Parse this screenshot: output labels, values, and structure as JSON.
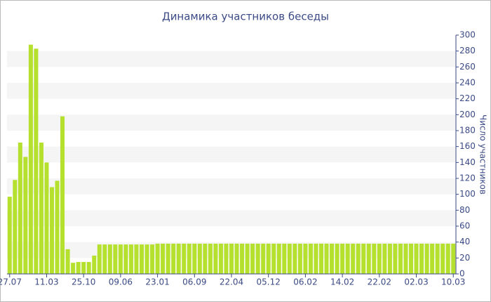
{
  "chart_data": {
    "type": "bar",
    "title": "Динамика участников беседы",
    "y_label": "Число участников",
    "color": "#b5e02e",
    "categories": [
      "27.07",
      null,
      null,
      null,
      null,
      null,
      null,
      "11.03",
      null,
      null,
      null,
      null,
      null,
      null,
      "25.10",
      null,
      null,
      null,
      null,
      null,
      null,
      "09.06",
      null,
      null,
      null,
      null,
      null,
      null,
      "23.01",
      null,
      null,
      null,
      null,
      null,
      null,
      "06.09",
      null,
      null,
      null,
      null,
      null,
      null,
      "22.04",
      null,
      null,
      null,
      null,
      null,
      null,
      "05.12",
      null,
      null,
      null,
      null,
      null,
      null,
      "06.02",
      null,
      null,
      null,
      null,
      null,
      null,
      "14.02",
      null,
      null,
      null,
      null,
      null,
      null,
      "22.02",
      null,
      null,
      null,
      null,
      null,
      null,
      "02.03",
      null,
      null,
      null,
      null,
      null,
      null,
      "10.03"
    ],
    "values": [
      97,
      118,
      165,
      147,
      288,
      283,
      165,
      140,
      109,
      117,
      198,
      31,
      14,
      15,
      15,
      15,
      23,
      37,
      37,
      37,
      37,
      37,
      37,
      37,
      37,
      37,
      37,
      37,
      38,
      38,
      38,
      38,
      38,
      38,
      38,
      38,
      38,
      38,
      38,
      38,
      38,
      38,
      38,
      38,
      38,
      38,
      38,
      38,
      38,
      38,
      38,
      38,
      38,
      38,
      38,
      38,
      38,
      38,
      38,
      38,
      38,
      38,
      38,
      38,
      38,
      38,
      38,
      38,
      38,
      38,
      38,
      38,
      38,
      38,
      38,
      38,
      38,
      38,
      38,
      38,
      38,
      38,
      38,
      38,
      38
    ],
    "ylim": [
      0,
      300
    ],
    "yticks": [
      0,
      20,
      40,
      60,
      80,
      100,
      120,
      140,
      160,
      180,
      200,
      220,
      240,
      260,
      280,
      300
    ],
    "grid": "bands"
  }
}
